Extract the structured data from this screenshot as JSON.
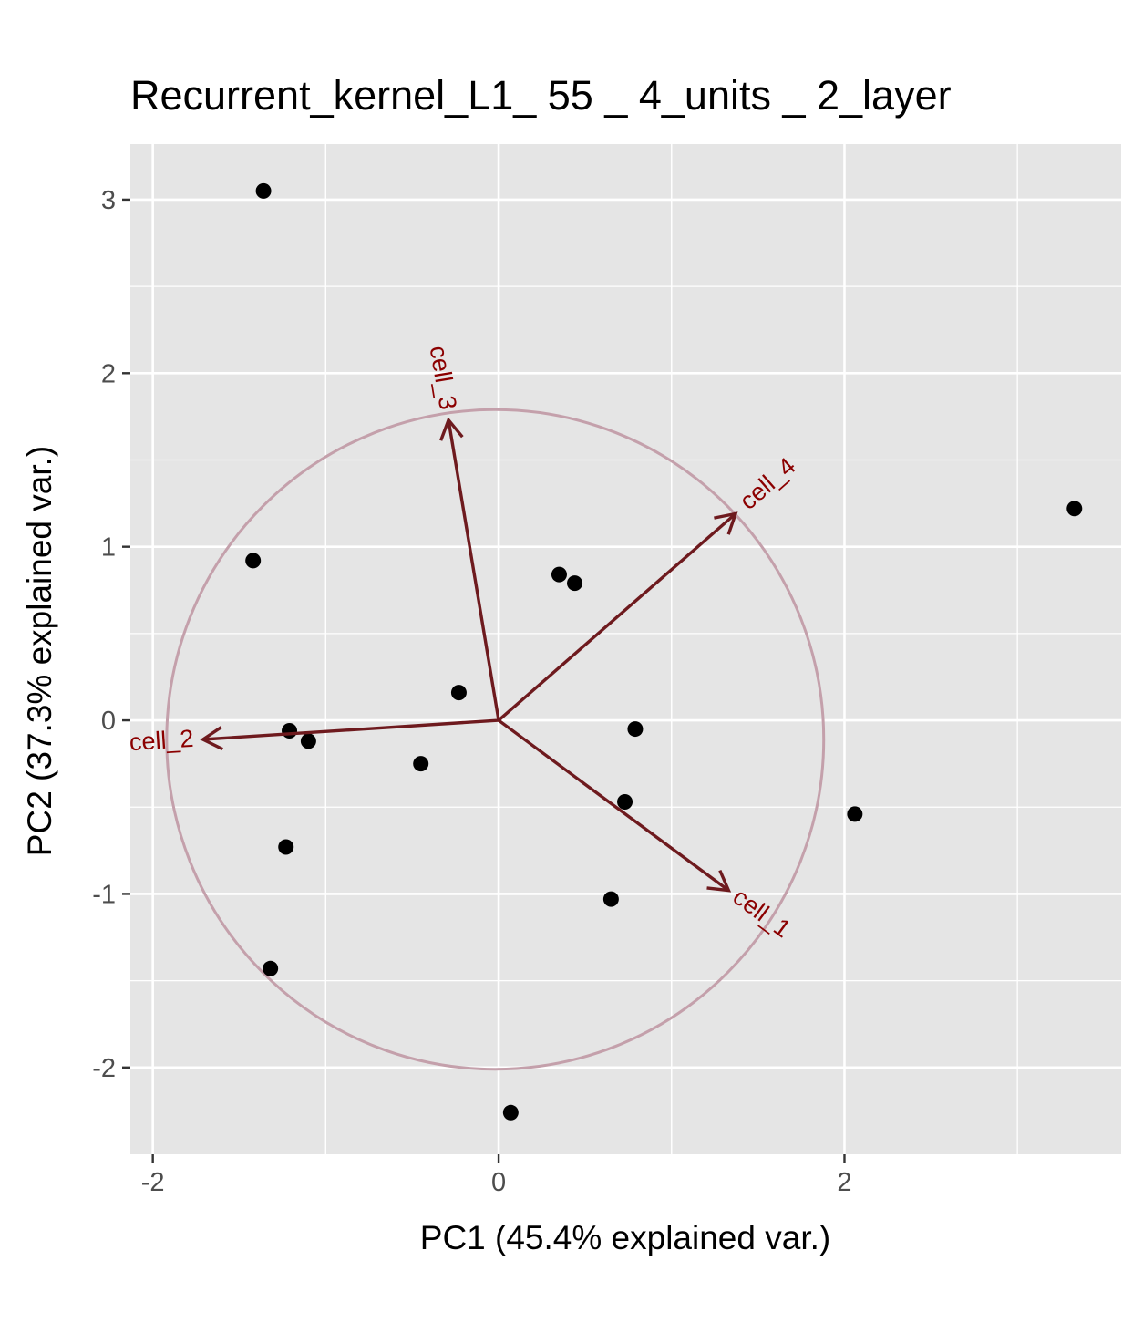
{
  "chart_data": {
    "type": "scatter",
    "title": "Recurrent_kernel_L1_ 55 _ 4_units _ 2_layer",
    "xlabel": "PC1 (45.4% explained var.)",
    "ylabel": "PC2 (37.3% explained var.)",
    "xlim": [
      -2.13,
      3.6
    ],
    "ylim": [
      -2.5,
      3.32
    ],
    "x_ticks": [
      -2,
      0,
      2
    ],
    "y_ticks": [
      3,
      2,
      1,
      0,
      -1,
      -2
    ],
    "x_tick_labels": [
      "-2",
      "0",
      "2"
    ],
    "y_tick_labels": [
      "3",
      "2",
      "1",
      "0",
      "-1",
      "-2"
    ],
    "grid": true,
    "points": [
      {
        "x": -1.36,
        "y": 3.05
      },
      {
        "x": 3.33,
        "y": 1.22
      },
      {
        "x": -1.42,
        "y": 0.92
      },
      {
        "x": 0.35,
        "y": 0.84
      },
      {
        "x": 0.44,
        "y": 0.79
      },
      {
        "x": -0.23,
        "y": 0.16
      },
      {
        "x": -1.21,
        "y": -0.06
      },
      {
        "x": -1.1,
        "y": -0.12
      },
      {
        "x": 0.79,
        "y": -0.05
      },
      {
        "x": -0.45,
        "y": -0.25
      },
      {
        "x": 0.73,
        "y": -0.47
      },
      {
        "x": 2.06,
        "y": -0.54
      },
      {
        "x": -1.23,
        "y": -0.73
      },
      {
        "x": 0.65,
        "y": -1.03
      },
      {
        "x": -1.32,
        "y": -1.43
      },
      {
        "x": 0.07,
        "y": -2.26
      }
    ],
    "circle": {
      "cx": -0.02,
      "cy": -0.11,
      "r": 1.9
    },
    "vectors": [
      {
        "name": "cell_1",
        "x": 1.33,
        "y": -0.98
      },
      {
        "name": "cell_2",
        "x": -1.71,
        "y": -0.11
      },
      {
        "name": "cell_3",
        "x": -0.29,
        "y": 1.73
      },
      {
        "name": "cell_4",
        "x": 1.37,
        "y": 1.19
      }
    ],
    "colors": {
      "panel": "#e5e5e5",
      "grid": "#ffffff",
      "point": "#000000",
      "arrow": "#6e1a1e",
      "arrow_label": "#8b0000",
      "circle": "#c4a0ab"
    }
  }
}
